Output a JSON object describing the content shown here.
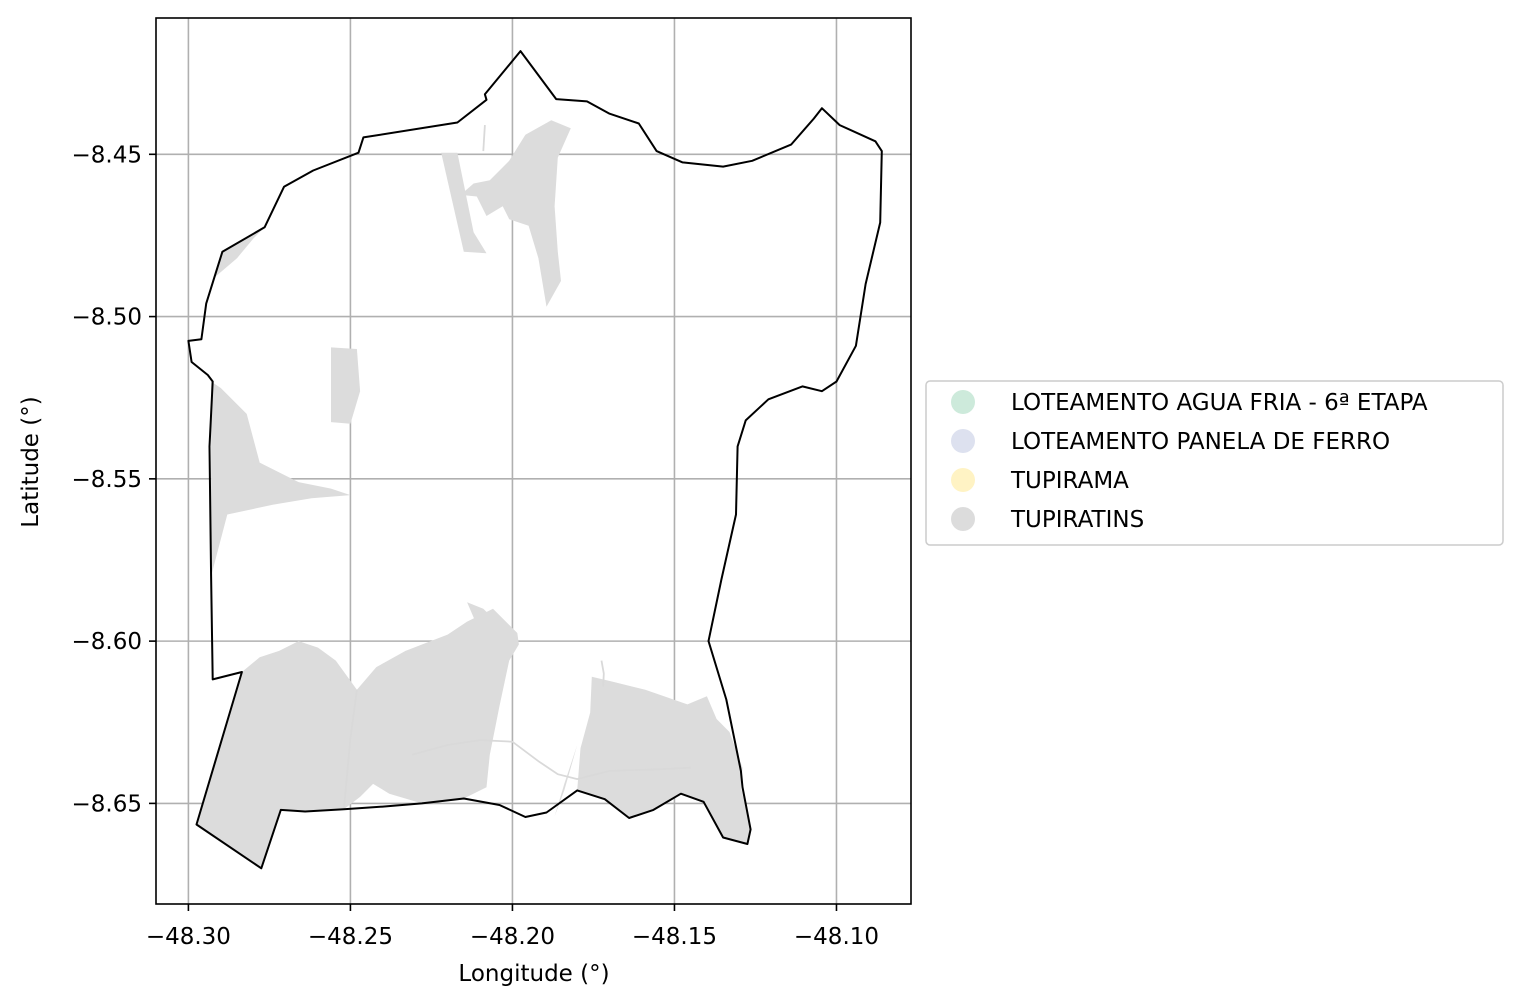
{
  "chart_data": {
    "type": "map",
    "xlabel": "Longitude (°)",
    "ylabel": "Latitude (°)",
    "xlim": [
      -48.31,
      -48.077
    ],
    "ylim": [
      -8.681,
      -8.408
    ],
    "grid": true,
    "x_ticks": [
      {
        "value": -48.3,
        "label": "−48.30"
      },
      {
        "value": -48.25,
        "label": "−48.25"
      },
      {
        "value": -48.2,
        "label": "−48.20"
      },
      {
        "value": -48.15,
        "label": "−48.15"
      },
      {
        "value": -48.1,
        "label": "−48.10"
      }
    ],
    "y_ticks": [
      {
        "value": -8.45,
        "label": "−8.45"
      },
      {
        "value": -8.5,
        "label": "−8.50"
      },
      {
        "value": -8.55,
        "label": "−8.55"
      },
      {
        "value": -8.6,
        "label": "−8.60"
      },
      {
        "value": -8.65,
        "label": "−8.65"
      }
    ],
    "legend_position": "right",
    "legend": [
      {
        "label": "LOTEAMENTO AGUA FRIA - 6ª ETAPA",
        "color": "#cdeadb"
      },
      {
        "label": "LOTEAMENTO PANELA DE FERRO",
        "color": "#dde1ef"
      },
      {
        "label": "TUPIRAMA",
        "color": "#fff3c4"
      },
      {
        "label": "TUPIRATINS",
        "color": "#dcdcdc"
      }
    ],
    "boundary_color": "#000000",
    "boundary": [
      [
        -48.2085,
        -8.4315
      ],
      [
        -48.1975,
        -8.4182
      ],
      [
        -48.1865,
        -8.433
      ],
      [
        -48.177,
        -8.4337
      ],
      [
        -48.17,
        -8.4375
      ],
      [
        -48.161,
        -8.4405
      ],
      [
        -48.1555,
        -8.449
      ],
      [
        -48.1475,
        -8.4525
      ],
      [
        -48.135,
        -8.4538
      ],
      [
        -48.126,
        -8.452
      ],
      [
        -48.114,
        -8.447
      ],
      [
        -48.107,
        -8.439
      ],
      [
        -48.1045,
        -8.4358
      ],
      [
        -48.099,
        -8.441
      ],
      [
        -48.088,
        -8.446
      ],
      [
        -48.086,
        -8.449
      ],
      [
        -48.0865,
        -8.471
      ],
      [
        -48.091,
        -8.49
      ],
      [
        -48.094,
        -8.509
      ],
      [
        -48.1,
        -8.52
      ],
      [
        -48.1045,
        -8.523
      ],
      [
        -48.1105,
        -8.5215
      ],
      [
        -48.121,
        -8.5255
      ],
      [
        -48.128,
        -8.532
      ],
      [
        -48.1305,
        -8.54
      ],
      [
        -48.131,
        -8.561
      ],
      [
        -48.1355,
        -8.581
      ],
      [
        -48.1395,
        -8.6
      ],
      [
        -48.134,
        -8.618
      ],
      [
        -48.1295,
        -8.64
      ],
      [
        -48.129,
        -8.645
      ],
      [
        -48.1265,
        -8.658
      ],
      [
        -48.1275,
        -8.6625
      ],
      [
        -48.135,
        -8.6605
      ],
      [
        -48.141,
        -8.6495
      ],
      [
        -48.148,
        -8.647
      ],
      [
        -48.1565,
        -8.652
      ],
      [
        -48.164,
        -8.6545
      ],
      [
        -48.1715,
        -8.6487
      ],
      [
        -48.18,
        -8.646
      ],
      [
        -48.1895,
        -8.6528
      ],
      [
        -48.196,
        -8.6542
      ],
      [
        -48.204,
        -8.6505
      ],
      [
        -48.215,
        -8.6485
      ],
      [
        -48.228,
        -8.65
      ],
      [
        -48.24,
        -8.651
      ],
      [
        -48.252,
        -8.6518
      ],
      [
        -48.264,
        -8.6525
      ],
      [
        -48.2715,
        -8.652
      ],
      [
        -48.2775,
        -8.67
      ],
      [
        -48.2975,
        -8.6565
      ],
      [
        -48.2835,
        -8.6095
      ],
      [
        -48.2925,
        -8.6118
      ],
      [
        -48.293,
        -8.58
      ],
      [
        -48.2935,
        -8.54
      ],
      [
        -48.2925,
        -8.52
      ],
      [
        -48.294,
        -8.518
      ],
      [
        -48.299,
        -8.514
      ],
      [
        -48.3,
        -8.5075
      ],
      [
        -48.296,
        -8.507
      ],
      [
        -48.2945,
        -8.496
      ],
      [
        -48.292,
        -8.488
      ],
      [
        -48.2895,
        -8.48
      ],
      [
        -48.2765,
        -8.4725
      ],
      [
        -48.2705,
        -8.46
      ],
      [
        -48.2615,
        -8.455
      ],
      [
        -48.2475,
        -8.4495
      ],
      [
        -48.246,
        -8.4448
      ],
      [
        -48.217,
        -8.4402
      ],
      [
        -48.208,
        -8.4332
      ],
      [
        -48.2085,
        -8.4315
      ]
    ],
    "series": [
      {
        "name": "TUPIRATINS",
        "color": "#dcdcdc",
        "polygons": [
          [
            [
              -48.2835,
              -8.6095
            ],
            [
              -48.278,
              -8.605
            ],
            [
              -48.272,
              -8.603
            ],
            [
              -48.266,
              -8.6
            ],
            [
              -48.26,
              -8.602
            ],
            [
              -48.2545,
              -8.606
            ],
            [
              -48.248,
              -8.615
            ],
            [
              -48.242,
              -8.608
            ],
            [
              -48.233,
              -8.603
            ],
            [
              -48.22,
              -8.598
            ],
            [
              -48.214,
              -8.594
            ],
            [
              -48.206,
              -8.59
            ],
            [
              -48.1985,
              -8.5975
            ],
            [
              -48.198,
              -8.601
            ],
            [
              -48.201,
              -8.606
            ],
            [
              -48.204,
              -8.62
            ],
            [
              -48.207,
              -8.635
            ],
            [
              -48.208,
              -8.645
            ],
            [
              -48.215,
              -8.6485
            ],
            [
              -48.228,
              -8.65
            ],
            [
              -48.238,
              -8.647
            ],
            [
              -48.243,
              -8.644
            ],
            [
              -48.247,
              -8.648
            ],
            [
              -48.252,
              -8.6518
            ],
            [
              -48.264,
              -8.6525
            ],
            [
              -48.2715,
              -8.652
            ],
            [
              -48.2775,
              -8.67
            ],
            [
              -48.2975,
              -8.6565
            ],
            [
              -48.2835,
              -8.6095
            ]
          ],
          [
            [
              -48.252,
              -8.6518
            ],
            [
              -48.253,
              -8.64
            ],
            [
              -48.25,
              -8.628
            ],
            [
              -48.256,
              -8.615
            ],
            [
              -48.256,
              -8.6518
            ]
          ],
          [
            [
              -48.1755,
              -8.611
            ],
            [
              -48.169,
              -8.6125
            ],
            [
              -48.159,
              -8.615
            ],
            [
              -48.146,
              -8.6195
            ],
            [
              -48.14,
              -8.617
            ],
            [
              -48.137,
              -8.624
            ],
            [
              -48.133,
              -8.628
            ],
            [
              -48.129,
              -8.639
            ],
            [
              -48.1295,
              -8.645
            ],
            [
              -48.1265,
              -8.658
            ],
            [
              -48.1275,
              -8.6625
            ],
            [
              -48.135,
              -8.6605
            ],
            [
              -48.141,
              -8.6495
            ],
            [
              -48.148,
              -8.647
            ],
            [
              -48.1565,
              -8.652
            ],
            [
              -48.164,
              -8.6545
            ],
            [
              -48.1715,
              -8.6487
            ],
            [
              -48.18,
              -8.646
            ],
            [
              -48.179,
              -8.633
            ],
            [
              -48.176,
              -8.622
            ],
            [
              -48.1755,
              -8.611
            ]
          ],
          [
            [
              -48.187,
              -8.654
            ],
            [
              -48.184,
              -8.644
            ],
            [
              -48.18,
              -8.632
            ],
            [
              -48.184,
              -8.646
            ]
          ],
          [
            [
              -48.216,
              -8.4625
            ],
            [
              -48.212,
              -8.459
            ],
            [
              -48.207,
              -8.458
            ],
            [
              -48.201,
              -8.452
            ],
            [
              -48.196,
              -8.444
            ],
            [
              -48.188,
              -8.4395
            ],
            [
              -48.182,
              -8.442
            ],
            [
              -48.186,
              -8.451
            ],
            [
              -48.187,
              -8.466
            ],
            [
              -48.186,
              -8.48
            ],
            [
              -48.185,
              -8.489
            ],
            [
              -48.1895,
              -8.497
            ],
            [
              -48.192,
              -8.482
            ],
            [
              -48.195,
              -8.472
            ],
            [
              -48.201,
              -8.47
            ],
            [
              -48.203,
              -8.466
            ],
            [
              -48.208,
              -8.469
            ],
            [
              -48.211,
              -8.463
            ],
            [
              -48.216,
              -8.4625
            ]
          ],
          [
            [
              -48.222,
              -8.4495
            ],
            [
              -48.217,
              -8.4495
            ],
            [
              -48.212,
              -8.474
            ],
            [
              -48.208,
              -8.4805
            ],
            [
              -48.215,
              -8.48
            ],
            [
              -48.222,
              -8.4495
            ]
          ],
          [
            [
              -48.256,
              -8.5095
            ],
            [
              -48.248,
              -8.51
            ],
            [
              -48.247,
              -8.523
            ],
            [
              -48.25,
              -8.533
            ],
            [
              -48.256,
              -8.5325
            ],
            [
              -48.256,
              -8.5095
            ]
          ],
          [
            [
              -48.293,
              -8.52
            ],
            [
              -48.29,
              -8.522
            ],
            [
              -48.282,
              -8.53
            ],
            [
              -48.278,
              -8.545
            ],
            [
              -48.27,
              -8.549
            ],
            [
              -48.266,
              -8.551
            ],
            [
              -48.256,
              -8.553
            ],
            [
              -48.25,
              -8.555
            ],
            [
              -48.262,
              -8.556
            ],
            [
              -48.274,
              -8.558
            ],
            [
              -48.288,
              -8.561
            ],
            [
              -48.293,
              -8.58
            ],
            [
              -48.293,
              -8.52
            ]
          ],
          [
            [
              -48.292,
              -8.488
            ],
            [
              -48.285,
              -8.482
            ],
            [
              -48.28,
              -8.476
            ],
            [
              -48.2765,
              -8.4725
            ],
            [
              -48.2895,
              -8.48
            ],
            [
              -48.292,
              -8.488
            ]
          ],
          [
            [
              -48.214,
              -8.588
            ],
            [
              -48.209,
              -8.59
            ],
            [
              -48.206,
              -8.593
            ],
            [
              -48.211,
              -8.595
            ],
            [
              -48.214,
              -8.588
            ]
          ]
        ]
      }
    ],
    "roads": [
      [
        [
          -48.231,
          -8.635
        ],
        [
          -48.22,
          -8.632
        ],
        [
          -48.21,
          -8.6305
        ],
        [
          -48.2,
          -8.631
        ],
        [
          -48.192,
          -8.637
        ],
        [
          -48.186,
          -8.641
        ],
        [
          -48.18,
          -8.6425
        ],
        [
          -48.17,
          -8.64
        ],
        [
          -48.155,
          -8.6395
        ],
        [
          -48.145,
          -8.639
        ]
      ],
      [
        [
          -48.248,
          -8.615
        ],
        [
          -48.25,
          -8.63
        ],
        [
          -48.252,
          -8.6518
        ]
      ],
      [
        [
          -48.2085,
          -8.441
        ],
        [
          -48.209,
          -8.449
        ]
      ],
      [
        [
          -48.1725,
          -8.606
        ],
        [
          -48.1718,
          -8.61
        ],
        [
          -48.172,
          -8.614
        ]
      ]
    ]
  }
}
